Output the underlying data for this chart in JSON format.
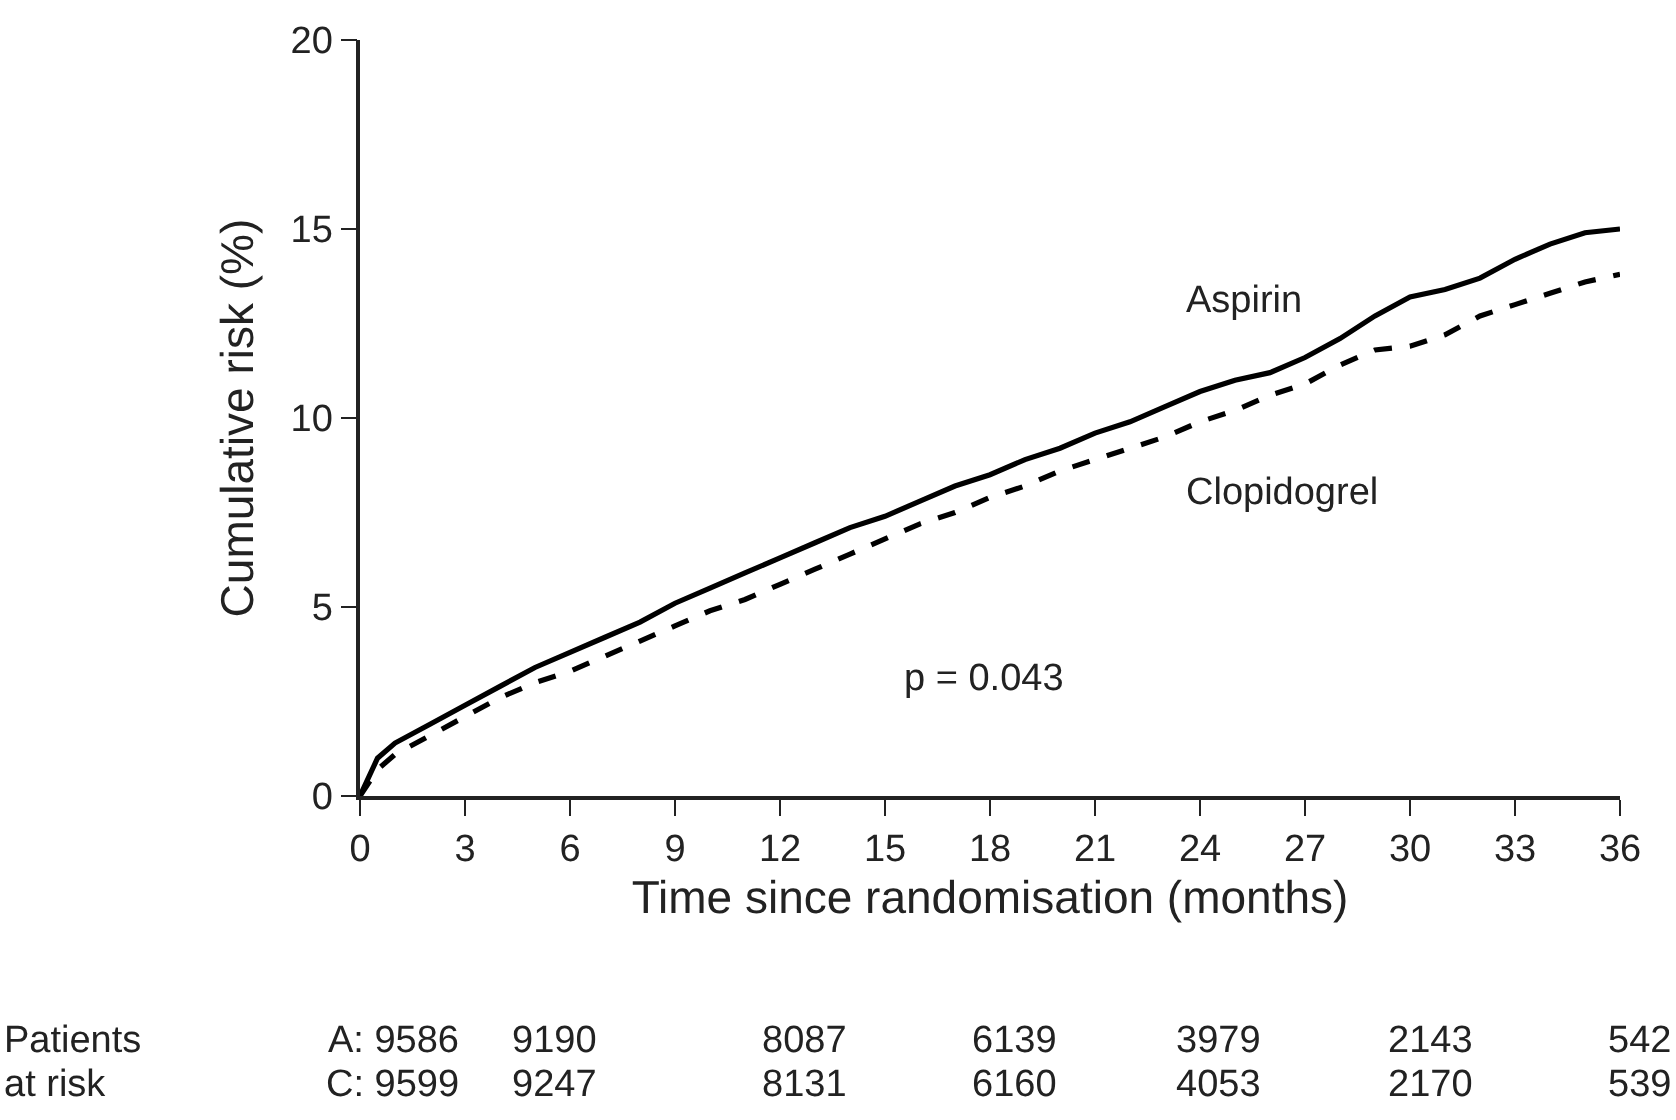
{
  "chart_data": {
    "type": "line",
    "xlabel": "Time since randomisation (months)",
    "ylabel": "Cumulative risk (%)",
    "xlim": [
      0,
      36
    ],
    "xticks": [
      0,
      3,
      6,
      9,
      12,
      15,
      18,
      21,
      24,
      27,
      30,
      33,
      36
    ],
    "ylim": [
      0,
      20
    ],
    "yticks": [
      0,
      5,
      10,
      15,
      20
    ],
    "legend": false,
    "marker": "none",
    "x": [
      0,
      0.5,
      1,
      2,
      3,
      4,
      5,
      6,
      7,
      8,
      9,
      10,
      11,
      12,
      13,
      14,
      15,
      16,
      17,
      18,
      19,
      20,
      21,
      22,
      23,
      24,
      25,
      26,
      27,
      28,
      29,
      30,
      31,
      32,
      33,
      34,
      35,
      36
    ],
    "series": [
      {
        "name": "Aspirin",
        "color": "#000000",
        "line_style": "solid",
        "values": [
          0,
          1.0,
          1.4,
          1.9,
          2.4,
          2.9,
          3.4,
          3.8,
          4.2,
          4.6,
          5.1,
          5.5,
          5.9,
          6.3,
          6.7,
          7.1,
          7.4,
          7.8,
          8.2,
          8.5,
          8.9,
          9.2,
          9.6,
          9.9,
          10.3,
          10.7,
          11.0,
          11.2,
          11.6,
          12.1,
          12.7,
          13.2,
          13.4,
          13.7,
          14.2,
          14.6,
          14.9,
          15.0
        ]
      },
      {
        "name": "Clopidogrel",
        "color": "#000000",
        "line_style": "dashed",
        "values": [
          0,
          0.7,
          1.1,
          1.6,
          2.1,
          2.6,
          3.0,
          3.3,
          3.7,
          4.1,
          4.5,
          4.9,
          5.2,
          5.6,
          6.0,
          6.4,
          6.8,
          7.2,
          7.5,
          7.9,
          8.2,
          8.6,
          8.9,
          9.2,
          9.5,
          9.9,
          10.2,
          10.6,
          10.9,
          11.4,
          11.8,
          11.9,
          12.2,
          12.7,
          13.0,
          13.3,
          13.6,
          13.8
        ]
      }
    ],
    "annotations": [
      "p = 0.043",
      "Patients",
      "at risk",
      "A: 9586",
      "9190",
      "8087",
      "6139",
      "3979",
      "2143",
      "542",
      "C: 9599",
      "9247",
      "8131",
      "6160",
      "4053",
      "2170",
      "539"
    ]
  }
}
